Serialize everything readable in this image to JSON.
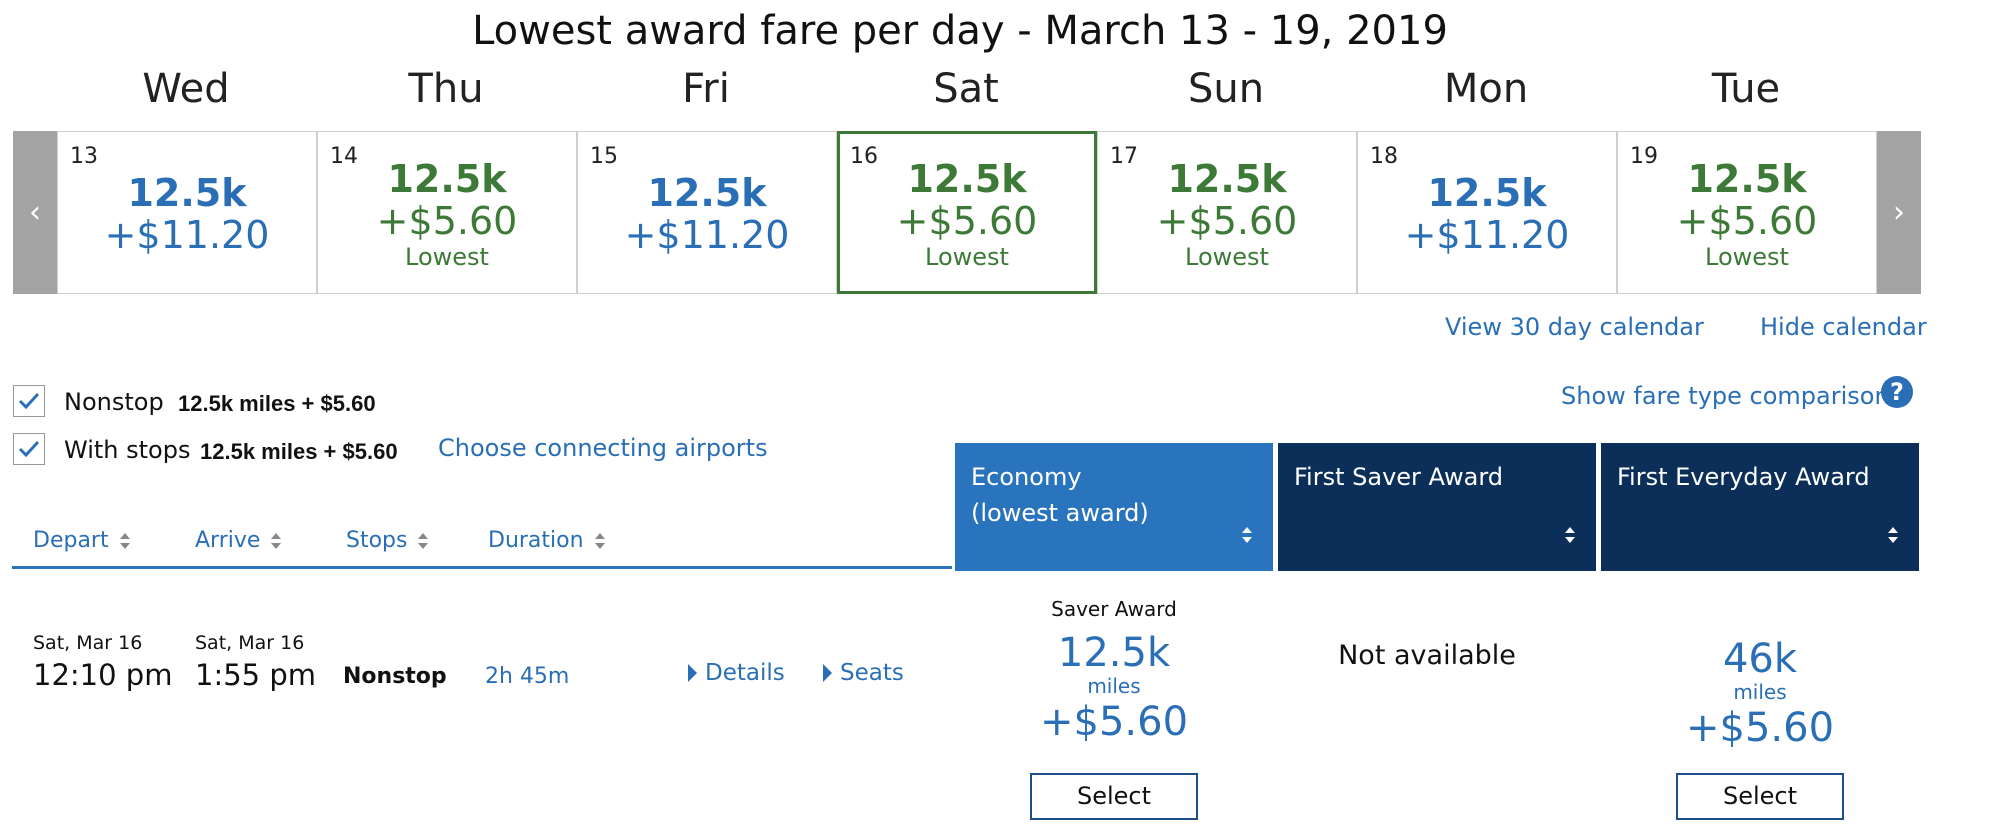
{
  "title": "Lowest award fare per day - March 13 - 19, 2019",
  "calendar": {
    "prev_arrow": "‹",
    "next_arrow": "›",
    "days": [
      {
        "dayname": "Wed",
        "num": "13",
        "miles": "12.5k",
        "price": "+$11.20",
        "lowest": ""
      },
      {
        "dayname": "Thu",
        "num": "14",
        "miles": "12.5k",
        "price": "+$5.60",
        "lowest": "Lowest"
      },
      {
        "dayname": "Fri",
        "num": "15",
        "miles": "12.5k",
        "price": "+$11.20",
        "lowest": ""
      },
      {
        "dayname": "Sat",
        "num": "16",
        "miles": "12.5k",
        "price": "+$5.60",
        "lowest": "Lowest"
      },
      {
        "dayname": "Sun",
        "num": "17",
        "miles": "12.5k",
        "price": "+$5.60",
        "lowest": "Lowest"
      },
      {
        "dayname": "Mon",
        "num": "18",
        "miles": "12.5k",
        "price": "+$11.20",
        "lowest": ""
      },
      {
        "dayname": "Tue",
        "num": "19",
        "miles": "12.5k",
        "price": "+$5.60",
        "lowest": "Lowest"
      }
    ],
    "selected_day": "16",
    "view_30_day": "View 30 day calendar",
    "hide_calendar": "Hide calendar"
  },
  "filters": {
    "nonstop": {
      "label": "Nonstop",
      "value": "12.5k miles + $5.60",
      "checked": true
    },
    "with_stops": {
      "label": "With stops",
      "value": "12.5k miles + $5.60",
      "checked": true
    },
    "choose_connecting": "Choose connecting airports",
    "show_fare_comparison": "Show fare type comparison",
    "help": "?"
  },
  "fare_columns": [
    {
      "line1": "Economy",
      "line2": "(lowest award)"
    },
    {
      "line1": "First Saver Award",
      "line2": ""
    },
    {
      "line1": "First Everyday Award",
      "line2": ""
    }
  ],
  "sort_headers": {
    "depart": "Depart",
    "arrive": "Arrive",
    "stops": "Stops",
    "duration": "Duration"
  },
  "flight": {
    "depart_date": "Sat, Mar 16",
    "depart_time": "12:10 pm",
    "arrive_date": "Sat, Mar 16",
    "arrive_time": "1:55 pm",
    "stops": "Nonstop",
    "duration": "2h 45m",
    "details": "Details",
    "seats": "Seats",
    "economy": {
      "type": "Saver Award",
      "miles": "12.5k",
      "unit": "miles",
      "price": "+$5.60",
      "select": "Select"
    },
    "first_saver": {
      "status": "Not available"
    },
    "first_everyday": {
      "miles": "46k",
      "unit": "miles",
      "price": "+$5.60",
      "select": "Select"
    }
  },
  "colors": {
    "blue": "#2a6fb6",
    "green": "#3d7a37",
    "navy": "#0c2f5a",
    "economy_header": "#2a74bd"
  }
}
